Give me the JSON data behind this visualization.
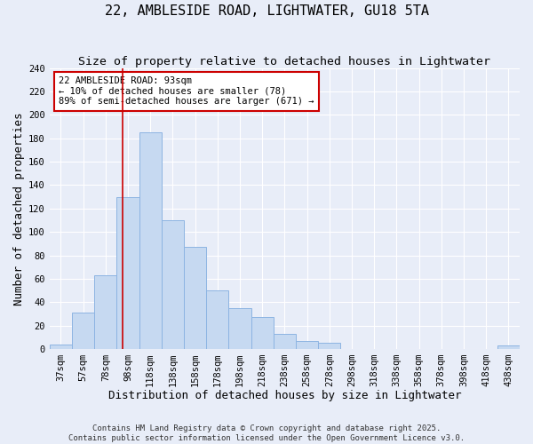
{
  "title": "22, AMBLESIDE ROAD, LIGHTWATER, GU18 5TA",
  "subtitle": "Size of property relative to detached houses in Lightwater",
  "xlabel": "Distribution of detached houses by size in Lightwater",
  "ylabel": "Number of detached properties",
  "bar_labels": [
    "37sqm",
    "57sqm",
    "78sqm",
    "98sqm",
    "118sqm",
    "138sqm",
    "158sqm",
    "178sqm",
    "198sqm",
    "218sqm",
    "238sqm",
    "258sqm",
    "278sqm",
    "298sqm",
    "318sqm",
    "338sqm",
    "358sqm",
    "378sqm",
    "398sqm",
    "418sqm",
    "438sqm"
  ],
  "bar_values": [
    4,
    31,
    63,
    130,
    185,
    110,
    87,
    50,
    35,
    27,
    13,
    7,
    5,
    0,
    0,
    0,
    0,
    0,
    0,
    0,
    3
  ],
  "bar_color": "#c6d9f1",
  "bar_edge_color": "#8db4e2",
  "vline_color": "#cc0000",
  "annotation_title": "22 AMBLESIDE ROAD: 93sqm",
  "annotation_line1": "← 10% of detached houses are smaller (78)",
  "annotation_line2": "89% of semi-detached houses are larger (671) →",
  "annotation_box_color": "#ffffff",
  "annotation_box_edge": "#cc0000",
  "ylim": [
    0,
    240
  ],
  "yticks": [
    0,
    20,
    40,
    60,
    80,
    100,
    120,
    140,
    160,
    180,
    200,
    220,
    240
  ],
  "footer1": "Contains HM Land Registry data © Crown copyright and database right 2025.",
  "footer2": "Contains public sector information licensed under the Open Government Licence v3.0.",
  "bg_color": "#e8edf8",
  "grid_color": "#ffffff",
  "title_fontsize": 11,
  "subtitle_fontsize": 9.5,
  "axis_label_fontsize": 9,
  "tick_fontsize": 7.5,
  "footer_fontsize": 6.5
}
